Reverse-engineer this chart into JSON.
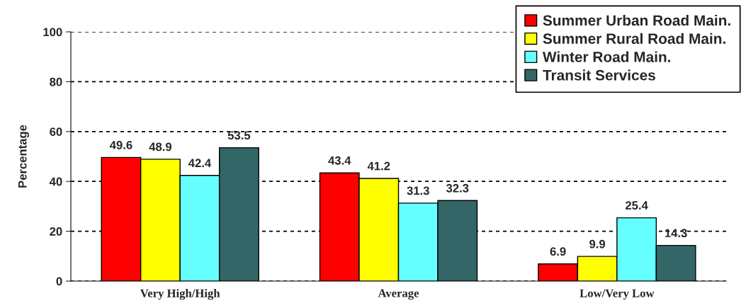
{
  "chart_data": {
    "type": "bar",
    "ylabel": "Percentage",
    "categories": [
      "Very High/High",
      "Average",
      "Low/Very Low"
    ],
    "series": [
      {
        "name": "Summer Urban Road Main.",
        "color": "#ff0000",
        "values": [
          49.6,
          43.4,
          6.9
        ]
      },
      {
        "name": "Summer Rural Road Main.",
        "color": "#ffff00",
        "values": [
          48.9,
          41.2,
          9.9
        ]
      },
      {
        "name": "Winter Road Main.",
        "color": "#66ffff",
        "values": [
          42.4,
          31.3,
          25.4
        ]
      },
      {
        "name": "Transit Services",
        "color": "#336666",
        "values": [
          53.5,
          32.3,
          14.3
        ]
      }
    ],
    "ylim": [
      0,
      100
    ],
    "yticks": [
      0,
      20,
      40,
      60,
      80,
      100
    ],
    "grid": "y",
    "legend": "top right",
    "data_labels": true
  }
}
